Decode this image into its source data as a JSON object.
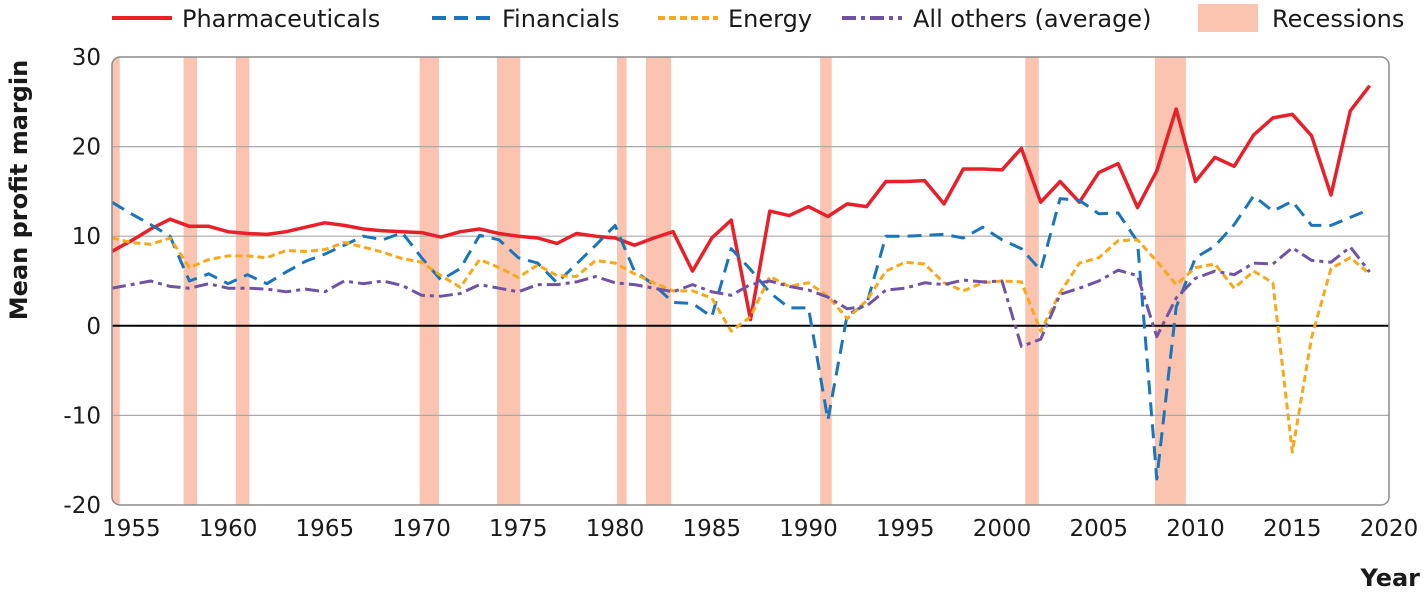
{
  "chart_data": {
    "type": "line",
    "title": "",
    "xlabel": "Year",
    "ylabel": "Mean profit margin",
    "xlim": [
      1954,
      2020
    ],
    "ylim": [
      -20,
      30
    ],
    "x_ticks": [
      1955,
      1960,
      1965,
      1970,
      1975,
      1980,
      1985,
      1990,
      1995,
      2000,
      2005,
      2010,
      2015,
      2020
    ],
    "y_ticks": [
      -20,
      -10,
      0,
      10,
      20,
      30
    ],
    "grid": "horizontal",
    "legend_position": "top",
    "recession_label": "Recessions",
    "recession_color": "#fbc4b0",
    "recessions": [
      [
        1953.6,
        1954.4
      ],
      [
        1957.7,
        1958.4
      ],
      [
        1960.4,
        1961.1
      ],
      [
        1969.9,
        1970.9
      ],
      [
        1973.9,
        1975.1
      ],
      [
        1980.1,
        1980.6
      ],
      [
        1981.6,
        1982.9
      ],
      [
        1990.6,
        1991.2
      ],
      [
        2001.2,
        2001.9
      ],
      [
        2007.9,
        2009.5
      ],
      [
        2020.0,
        2020.4
      ]
    ],
    "series": [
      {
        "name": "Pharmaceuticals",
        "color": "#e8202a",
        "dash": "solid",
        "x": [
          1954,
          1955,
          1956,
          1957,
          1958,
          1959,
          1960,
          1961,
          1962,
          1963,
          1964,
          1965,
          1966,
          1967,
          1968,
          1969,
          1970,
          1971,
          1972,
          1973,
          1974,
          1975,
          1976,
          1977,
          1978,
          1979,
          1980,
          1981,
          1982,
          1983,
          1984,
          1985,
          1986,
          1987,
          1988,
          1989,
          1990,
          1991,
          1992,
          1993,
          1994,
          1995,
          1996,
          1997,
          1998,
          1999,
          2000,
          2001,
          2002,
          2003,
          2004,
          2005,
          2006,
          2007,
          2008,
          2009,
          2010,
          2011,
          2012,
          2013,
          2014,
          2015,
          2016,
          2017,
          2018,
          2019
        ],
        "values": [
          8.3,
          9.5,
          10.8,
          11.9,
          11.1,
          11.1,
          10.5,
          10.3,
          10.2,
          10.5,
          11.0,
          11.5,
          11.2,
          10.8,
          10.6,
          10.5,
          10.4,
          9.9,
          10.5,
          10.8,
          10.3,
          10.0,
          9.8,
          9.2,
          10.3,
          10.0,
          9.8,
          9.0,
          9.8,
          10.5,
          6.1,
          9.8,
          11.8,
          0.7,
          12.8,
          12.3,
          13.3,
          12.2,
          13.6,
          13.3,
          16.1,
          16.1,
          16.2,
          13.6,
          17.5,
          17.5,
          17.4,
          19.8,
          13.8,
          16.1,
          13.8,
          17.1,
          18.1,
          13.2,
          17.3,
          24.2,
          16.1,
          18.8,
          17.8,
          21.3,
          23.2,
          23.6,
          21.2,
          14.6,
          24.0,
          26.8
        ]
      },
      {
        "name": "Financials",
        "color": "#1b75bb",
        "dash": "dashed",
        "x": [
          1954,
          1955,
          1956,
          1957,
          1958,
          1959,
          1960,
          1961,
          1962,
          1963,
          1964,
          1965,
          1966,
          1967,
          1968,
          1969,
          1970,
          1971,
          1972,
          1973,
          1974,
          1975,
          1976,
          1977,
          1978,
          1979,
          1980,
          1981,
          1982,
          1983,
          1984,
          1985,
          1986,
          1987,
          1988,
          1989,
          1990,
          1991,
          1992,
          1993,
          1994,
          1995,
          1996,
          1997,
          1998,
          1999,
          2000,
          2001,
          2002,
          2003,
          2004,
          2005,
          2006,
          2007,
          2008,
          2009,
          2010,
          2011,
          2012,
          2013,
          2014,
          2015,
          2016,
          2017,
          2018,
          2019
        ],
        "values": [
          13.8,
          12.5,
          11.3,
          10.0,
          5.0,
          5.8,
          4.7,
          5.7,
          4.7,
          6.0,
          7.2,
          8.0,
          9.0,
          10.0,
          9.6,
          10.4,
          7.6,
          5.1,
          6.4,
          10.1,
          9.6,
          7.6,
          7.0,
          4.8,
          6.9,
          9.0,
          11.2,
          6.1,
          4.6,
          2.6,
          2.5,
          1.0,
          8.6,
          6.3,
          3.7,
          2.0,
          2.0,
          -10.5,
          1.2,
          2.4,
          10.0,
          10.0,
          10.1,
          10.2,
          9.8,
          11.0,
          9.6,
          8.6,
          6.2,
          14.2,
          14.0,
          12.5,
          12.6,
          9.4,
          -17.1,
          2.1,
          7.6,
          8.9,
          11.3,
          14.5,
          12.8,
          13.9,
          11.2,
          11.2,
          12.1,
          13.0
        ]
      },
      {
        "name": "Energy",
        "color": "#f7a81b",
        "dash": "dotted",
        "x": [
          1954,
          1955,
          1956,
          1957,
          1958,
          1959,
          1960,
          1961,
          1962,
          1963,
          1964,
          1965,
          1966,
          1967,
          1968,
          1969,
          1970,
          1971,
          1972,
          1973,
          1974,
          1975,
          1976,
          1977,
          1978,
          1979,
          1980,
          1981,
          1982,
          1983,
          1984,
          1985,
          1986,
          1987,
          1988,
          1989,
          1990,
          1991,
          1992,
          1993,
          1994,
          1995,
          1996,
          1997,
          1998,
          1999,
          2000,
          2001,
          2002,
          2003,
          2004,
          2005,
          2006,
          2007,
          2008,
          2009,
          2010,
          2011,
          2012,
          2013,
          2014,
          2015,
          2016,
          2017,
          2018,
          2019
        ],
        "values": [
          9.8,
          9.3,
          9.1,
          9.8,
          6.5,
          7.4,
          7.8,
          7.8,
          7.6,
          8.4,
          8.3,
          8.5,
          9.3,
          8.8,
          8.2,
          7.5,
          7.1,
          5.6,
          4.3,
          7.4,
          6.5,
          5.4,
          6.8,
          5.6,
          5.5,
          7.3,
          7.0,
          5.8,
          4.8,
          3.9,
          3.9,
          3.1,
          -0.6,
          1.0,
          5.5,
          4.4,
          4.8,
          3.3,
          0.8,
          2.8,
          6.1,
          7.1,
          6.9,
          4.8,
          3.9,
          4.8,
          5.0,
          4.9,
          -0.6,
          3.7,
          7.0,
          7.6,
          9.5,
          9.6,
          7.2,
          4.6,
          6.5,
          6.9,
          4.2,
          6.1,
          4.8,
          -14.1,
          -1.3,
          6.4,
          7.6,
          5.8
        ]
      },
      {
        "name": "All others (average)",
        "color": "#7053a4",
        "dash": "dashdot",
        "x": [
          1954,
          1955,
          1956,
          1957,
          1958,
          1959,
          1960,
          1961,
          1962,
          1963,
          1964,
          1965,
          1966,
          1967,
          1968,
          1969,
          1970,
          1971,
          1972,
          1973,
          1974,
          1975,
          1976,
          1977,
          1978,
          1979,
          1980,
          1981,
          1982,
          1983,
          1984,
          1985,
          1986,
          1987,
          1988,
          1989,
          1990,
          1991,
          1992,
          1993,
          1994,
          1995,
          1996,
          1997,
          1998,
          1999,
          2000,
          2001,
          2002,
          2003,
          2004,
          2005,
          2006,
          2007,
          2008,
          2009,
          2010,
          2011,
          2012,
          2013,
          2014,
          2015,
          2016,
          2017,
          2018,
          2019
        ],
        "values": [
          4.2,
          4.6,
          5.0,
          4.4,
          4.2,
          4.7,
          4.2,
          4.2,
          4.1,
          3.8,
          4.1,
          3.8,
          5.0,
          4.7,
          5.0,
          4.5,
          3.4,
          3.3,
          3.6,
          4.6,
          4.2,
          3.8,
          4.6,
          4.6,
          4.9,
          5.5,
          4.8,
          4.6,
          4.2,
          3.8,
          4.6,
          3.8,
          3.4,
          4.6,
          5.0,
          4.4,
          4.0,
          3.2,
          1.9,
          2.2,
          4.0,
          4.2,
          4.8,
          4.6,
          5.1,
          4.9,
          5.0,
          -2.3,
          -1.5,
          3.5,
          4.2,
          5.0,
          6.2,
          5.6,
          -1.2,
          3.1,
          5.3,
          6.1,
          5.7,
          7.0,
          6.9,
          8.7,
          7.3,
          7.1,
          8.8,
          6.0
        ]
      }
    ]
  }
}
